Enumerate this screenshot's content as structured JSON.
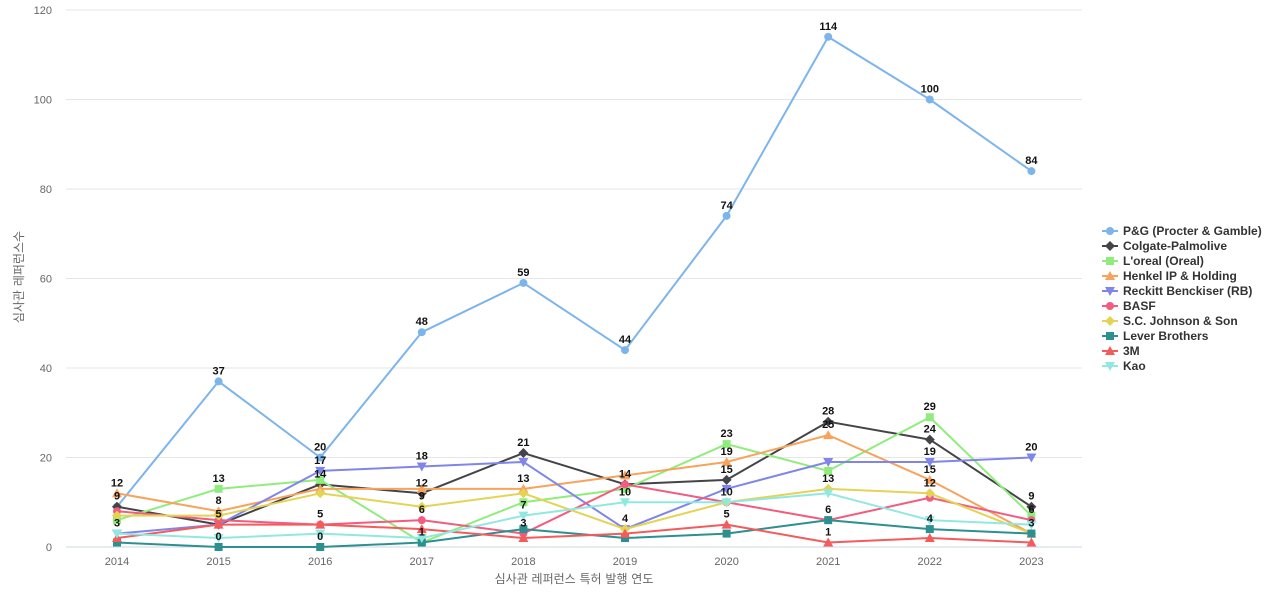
{
  "chart_data": {
    "type": "line",
    "xlabel": "심사관 레퍼런스 특허 발행 연도",
    "ylabel": "심사관 레퍼런스수",
    "ylim": [
      0,
      120
    ],
    "yticks": [
      0,
      20,
      40,
      60,
      80,
      100,
      120
    ],
    "grid": true,
    "legend_position": "right",
    "categories": [
      "2014",
      "2015",
      "2016",
      "2017",
      "2018",
      "2019",
      "2020",
      "2021",
      "2022",
      "2023"
    ],
    "series": [
      {
        "name": "P&G (Procter & Gamble)",
        "color": "#7cb5ec",
        "marker": "circle",
        "values": [
          9,
          37,
          20,
          48,
          59,
          44,
          74,
          114,
          100,
          84
        ],
        "labels": [
          false,
          true,
          true,
          true,
          true,
          true,
          true,
          true,
          true,
          true
        ]
      },
      {
        "name": "Colgate-Palmolive",
        "color": "#434348",
        "marker": "diamond",
        "values": [
          9,
          5,
          14,
          12,
          21,
          14,
          15,
          28,
          24,
          9
        ],
        "labels": [
          true,
          false,
          true,
          true,
          true,
          false,
          true,
          true,
          true,
          true
        ]
      },
      {
        "name": "L'oreal (Oreal)",
        "color": "#90ed7d",
        "marker": "square",
        "values": [
          6,
          13,
          15,
          1,
          10,
          13,
          23,
          17,
          29,
          7
        ],
        "labels": [
          false,
          true,
          false,
          false,
          false,
          false,
          true,
          false,
          true,
          false
        ]
      },
      {
        "name": "Henkel IP & Holding",
        "color": "#f7a35c",
        "marker": "triangle",
        "values": [
          12,
          8,
          13,
          13,
          13,
          16,
          19,
          25,
          15,
          3
        ],
        "labels": [
          true,
          true,
          false,
          false,
          true,
          false,
          true,
          true,
          true,
          false
        ]
      },
      {
        "name": "Reckitt Benckiser (RB)",
        "color": "#8085e9",
        "marker": "triangle-down",
        "values": [
          3,
          5,
          17,
          18,
          19,
          4,
          13,
          19,
          19,
          20
        ],
        "labels": [
          true,
          false,
          true,
          true,
          false,
          true,
          false,
          false,
          true,
          true
        ]
      },
      {
        "name": "BASF",
        "color": "#f15c80",
        "marker": "circle",
        "values": [
          8,
          6,
          5,
          6,
          3,
          14,
          10,
          6,
          11,
          6
        ],
        "labels": [
          false,
          false,
          true,
          true,
          true,
          true,
          true,
          true,
          false,
          true
        ]
      },
      {
        "name": "S.C. Johnson & Son",
        "color": "#e4d354",
        "marker": "diamond",
        "values": [
          7,
          7,
          12,
          9,
          12,
          4,
          10,
          13,
          12,
          3
        ],
        "labels": [
          false,
          false,
          false,
          true,
          false,
          false,
          false,
          true,
          true,
          false
        ]
      },
      {
        "name": "Lever Brothers",
        "color": "#2b908f",
        "marker": "square",
        "values": [
          1,
          0,
          0,
          1,
          4,
          2,
          3,
          6,
          4,
          3
        ],
        "labels": [
          false,
          true,
          true,
          true,
          false,
          false,
          false,
          false,
          true,
          true
        ]
      },
      {
        "name": "3M",
        "color": "#f45b5b",
        "marker": "triangle",
        "values": [
          2,
          5,
          5,
          4,
          2,
          3,
          5,
          1,
          2,
          1
        ],
        "labels": [
          false,
          true,
          false,
          false,
          false,
          false,
          true,
          true,
          false,
          false
        ]
      },
      {
        "name": "Kao",
        "color": "#91e8e1",
        "marker": "triangle-down",
        "values": [
          3,
          2,
          3,
          2,
          7,
          10,
          10,
          12,
          6,
          5
        ],
        "labels": [
          false,
          false,
          false,
          false,
          true,
          true,
          false,
          false,
          false,
          false
        ]
      }
    ]
  }
}
